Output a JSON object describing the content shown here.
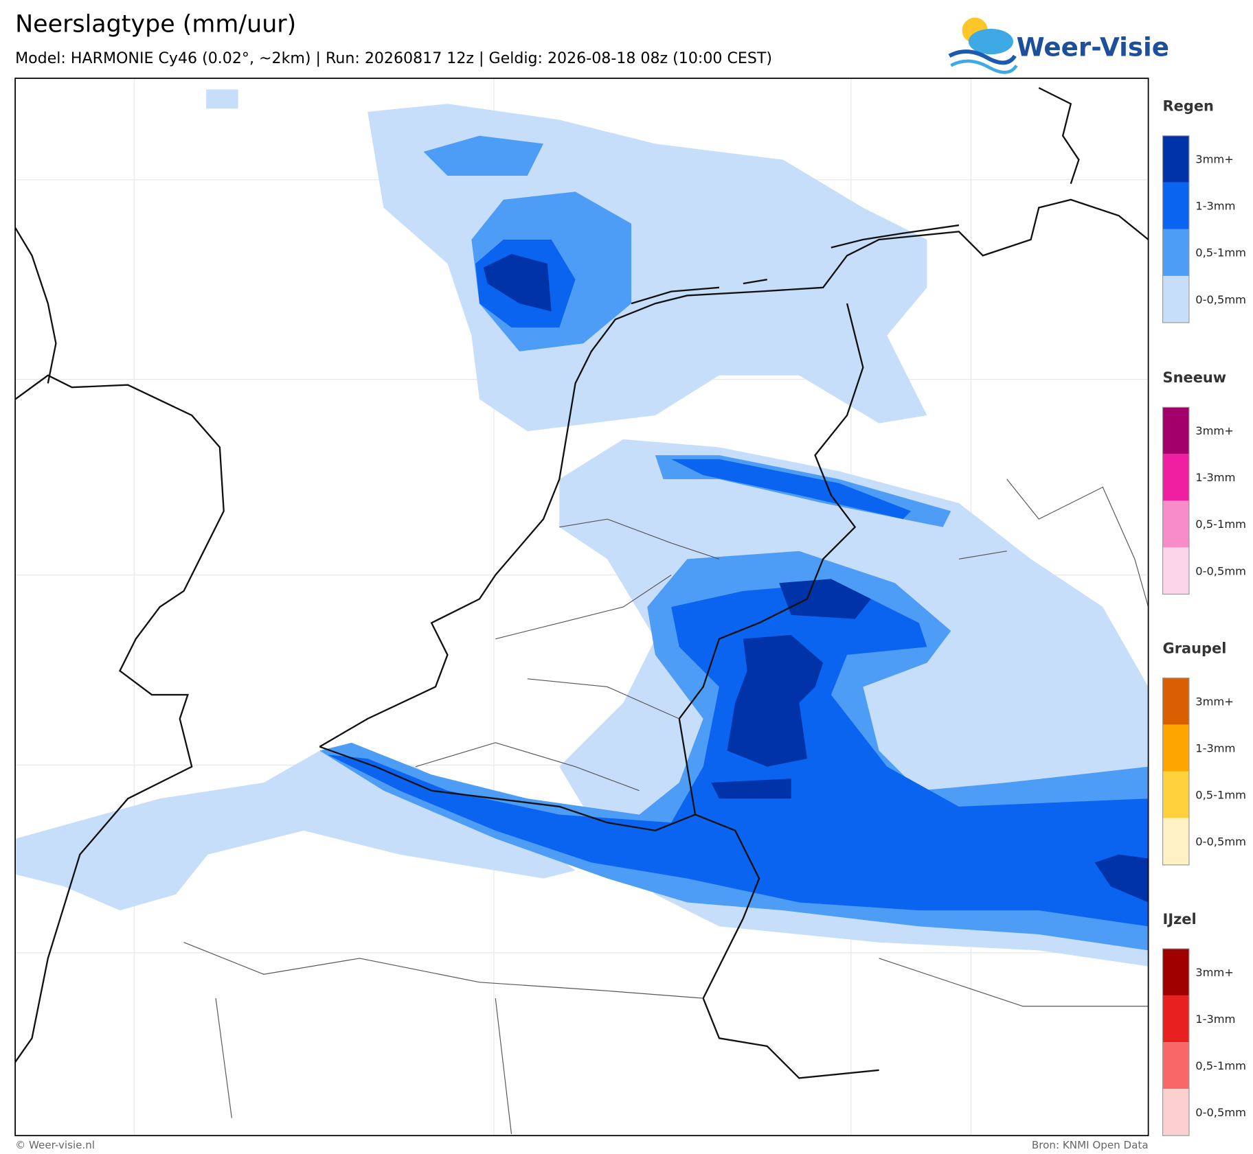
{
  "header": {
    "title": "Neerslagtype (mm/uur)",
    "subtitle": "Model: HARMONIE Cy46 (0.02°, ~2km)  |  Run: 20260817 12z  |  Geldig: 2026-08-18 08z (10:00 CEST)"
  },
  "logo": {
    "text": "Weer-Visie"
  },
  "legend": [
    {
      "name": "Regen",
      "levels": [
        {
          "label": "3mm+",
          "color": "#0033a8"
        },
        {
          "label": "1-3mm",
          "color": "#0a64f0"
        },
        {
          "label": "0,5-1mm",
          "color": "#4d9cf5"
        },
        {
          "label": "0-0,5mm",
          "color": "#c6defa"
        }
      ]
    },
    {
      "name": "Sneeuw",
      "levels": [
        {
          "label": "3mm+",
          "color": "#a3006b"
        },
        {
          "label": "1-3mm",
          "color": "#f01ea0"
        },
        {
          "label": "0,5-1mm",
          "color": "#f78cc8"
        },
        {
          "label": "0-0,5mm",
          "color": "#fcd5ea"
        }
      ]
    },
    {
      "name": "Graupel",
      "levels": [
        {
          "label": "3mm+",
          "color": "#d95f00"
        },
        {
          "label": "1-3mm",
          "color": "#ffa500"
        },
        {
          "label": "0,5-1mm",
          "color": "#ffd23c"
        },
        {
          "label": "0-0,5mm",
          "color": "#fff1c4"
        }
      ]
    },
    {
      "name": "IJzel",
      "levels": [
        {
          "label": "3mm+",
          "color": "#a00000"
        },
        {
          "label": "1-3mm",
          "color": "#e82020"
        },
        {
          "label": "0,5-1mm",
          "color": "#f86868"
        },
        {
          "label": "0-0,5mm",
          "color": "#fdd0d0"
        }
      ]
    }
  ],
  "footer": {
    "left": "© Weer-visie.nl",
    "right": "Bron: KNMI Open Data"
  }
}
